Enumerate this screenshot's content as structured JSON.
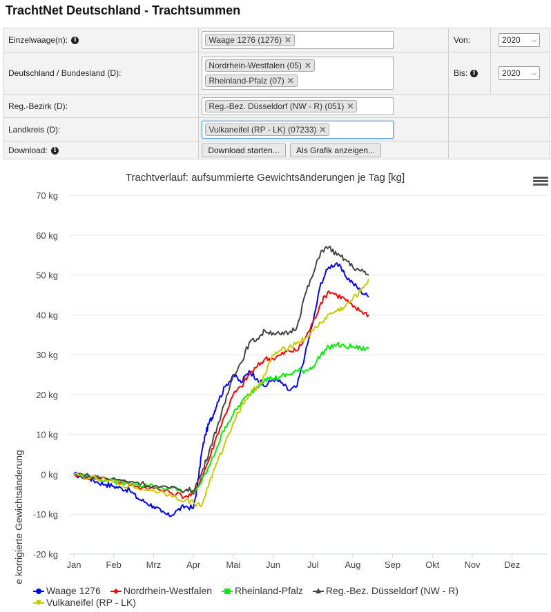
{
  "page": {
    "title": "TrachtNet Deutschland - Trachtsummen"
  },
  "filters": {
    "einzelwaage_label": "Einzelwaage(n):",
    "einzelwaage_tags": [
      "Waage 1276 (1276)"
    ],
    "bundesland_label": "Deutschland / Bundesland (D):",
    "bundesland_tags": [
      "Nordrhein-Westfalen (05)",
      "Rheinland-Pfalz (07)"
    ],
    "bezirk_label": "Reg.-Bezirk (D):",
    "bezirk_tags": [
      "Reg.-Bez. Düsseldorf (NW - R) (051)"
    ],
    "landkreis_label": "Landkreis (D):",
    "landkreis_tags": [
      "Vulkaneifel (RP - LK) (07233)"
    ],
    "download_label": "Download:",
    "download_button": "Download starten...",
    "graphic_button": "Als Grafik anzeigen...",
    "von_label": "Von:",
    "von_value": "2020",
    "bis_label": "Bis:",
    "bis_value": "2020"
  },
  "icons": {
    "info": "info-icon",
    "remove": "remove-tag-icon",
    "menu": "hamburger-menu-icon",
    "chevron": "chevron-down-icon"
  },
  "chart_data": {
    "type": "line",
    "title": "Trachtverlauf: aufsummierte Gewichtsänderungen je Tag [kg]",
    "ylabel": "Kumulierte korrigierte Gewichtsänderung",
    "xlabel": "",
    "ylim": [
      -20,
      70
    ],
    "yticks": [
      "-20 kg",
      "-10 kg",
      "0 kg",
      "10 kg",
      "20 kg",
      "30 kg",
      "40 kg",
      "50 kg",
      "60 kg",
      "70 kg"
    ],
    "yticks_values": [
      -20,
      -10,
      0,
      10,
      20,
      30,
      40,
      50,
      60,
      70
    ],
    "xticks": [
      "Jan",
      "Feb",
      "Mrz",
      "Apr",
      "Mai",
      "Jun",
      "Jul",
      "Aug",
      "Sep",
      "Okt",
      "Nov",
      "Dez"
    ],
    "x_unit": "month",
    "grid": "horizontal",
    "legend_position": "bottom",
    "series": [
      {
        "name": "Waage 1276",
        "color": "#0000ff",
        "marker": "circle",
        "x": [
          0.0,
          0.2,
          0.4,
          0.6,
          0.8,
          1.0,
          1.2,
          1.4,
          1.6,
          1.8,
          2.0,
          2.2,
          2.4,
          2.6,
          2.8,
          3.0,
          3.1,
          3.2,
          3.3,
          3.4,
          3.5,
          3.6,
          3.8,
          4.0,
          4.2,
          4.4,
          4.6,
          4.8,
          5.0,
          5.2,
          5.4,
          5.6,
          5.8,
          6.0,
          6.2,
          6.4,
          6.6,
          6.8,
          7.0,
          7.2,
          7.4
        ],
        "y": [
          0,
          -0.5,
          -1,
          -2,
          -2.5,
          -3,
          -3.5,
          -4,
          -6,
          -7,
          -8,
          -9.5,
          -10.5,
          -9,
          -8,
          -8.5,
          -3,
          5,
          10,
          13,
          15,
          18,
          22,
          25,
          23,
          26,
          24,
          22,
          24,
          23,
          21,
          22,
          30,
          38,
          48,
          52,
          53,
          50,
          48,
          46,
          44.5
        ]
      },
      {
        "name": "Nordrhein-Westfalen",
        "color": "#ff0000",
        "marker": "diamond",
        "x": [
          0.0,
          0.4,
          0.8,
          1.2,
          1.6,
          2.0,
          2.4,
          2.8,
          3.0,
          3.2,
          3.4,
          3.6,
          3.8,
          4.0,
          4.2,
          4.4,
          4.6,
          4.8,
          5.0,
          5.2,
          5.4,
          5.6,
          5.8,
          6.0,
          6.2,
          6.4,
          6.6,
          6.8,
          7.0,
          7.2,
          7.4
        ],
        "y": [
          0,
          -0.5,
          -1,
          -2,
          -3,
          -3.5,
          -4.5,
          -5.5,
          -5,
          -1,
          4,
          10,
          15,
          20,
          22,
          25,
          27,
          29,
          29,
          30,
          31,
          31,
          34,
          38,
          43,
          46,
          45,
          44,
          42,
          41,
          40
        ]
      },
      {
        "name": "Rheinland-Pfalz",
        "color": "#00ee00",
        "marker": "square",
        "x": [
          0.0,
          0.4,
          0.8,
          1.2,
          1.6,
          2.0,
          2.4,
          2.8,
          3.0,
          3.2,
          3.4,
          3.6,
          3.8,
          4.0,
          4.2,
          4.4,
          4.6,
          4.8,
          5.0,
          5.2,
          5.4,
          5.6,
          5.8,
          6.0,
          6.2,
          6.4,
          6.6,
          6.8,
          7.0,
          7.2,
          7.4
        ],
        "y": [
          0,
          -0.5,
          -1.5,
          -2,
          -2.5,
          -3,
          -3.5,
          -4,
          -4.5,
          -2,
          2,
          7,
          12,
          15,
          18,
          20,
          22,
          24,
          24,
          24.5,
          25,
          26,
          26,
          27,
          30,
          32,
          32.5,
          32,
          32,
          31.5,
          31.5
        ]
      },
      {
        "name": "Reg.-Bez. Düsseldorf (NW - R)",
        "color": "#444444",
        "marker": "triangle",
        "x": [
          0.0,
          0.4,
          0.8,
          1.2,
          1.6,
          2.0,
          2.4,
          2.8,
          3.0,
          3.2,
          3.4,
          3.6,
          3.8,
          4.0,
          4.2,
          4.4,
          4.6,
          4.8,
          5.0,
          5.2,
          5.4,
          5.6,
          5.8,
          6.0,
          6.2,
          6.4,
          6.6,
          6.8,
          7.0,
          7.2,
          7.4
        ],
        "y": [
          0,
          -0.5,
          -1,
          -1.5,
          -2,
          -3,
          -3.5,
          -4,
          -4,
          0,
          6,
          12,
          18,
          25,
          28,
          33,
          34,
          36,
          35.5,
          35,
          35.5,
          37,
          45,
          50,
          56,
          57,
          55,
          54,
          52,
          51,
          50
        ]
      },
      {
        "name": "Vulkaneifel (RP - LK)",
        "color": "#c8c800",
        "marker": "triangle-down",
        "x": [
          0.0,
          0.4,
          0.8,
          1.2,
          1.6,
          2.0,
          2.4,
          2.8,
          3.0,
          3.2,
          3.4,
          3.6,
          3.8,
          4.0,
          4.2,
          4.4,
          4.6,
          4.8,
          5.0,
          5.2,
          5.4,
          5.6,
          5.8,
          6.0,
          6.2,
          6.4,
          6.6,
          6.8,
          7.0,
          7.2,
          7.4
        ],
        "y": [
          0,
          -1,
          -1.5,
          -2.5,
          -3.5,
          -4,
          -5,
          -6.5,
          -7,
          -8,
          -2,
          3,
          8,
          13,
          17,
          20,
          22,
          25,
          30,
          31,
          32,
          33,
          34,
          36,
          38,
          40,
          41,
          42,
          44,
          46,
          49
        ]
      }
    ]
  }
}
